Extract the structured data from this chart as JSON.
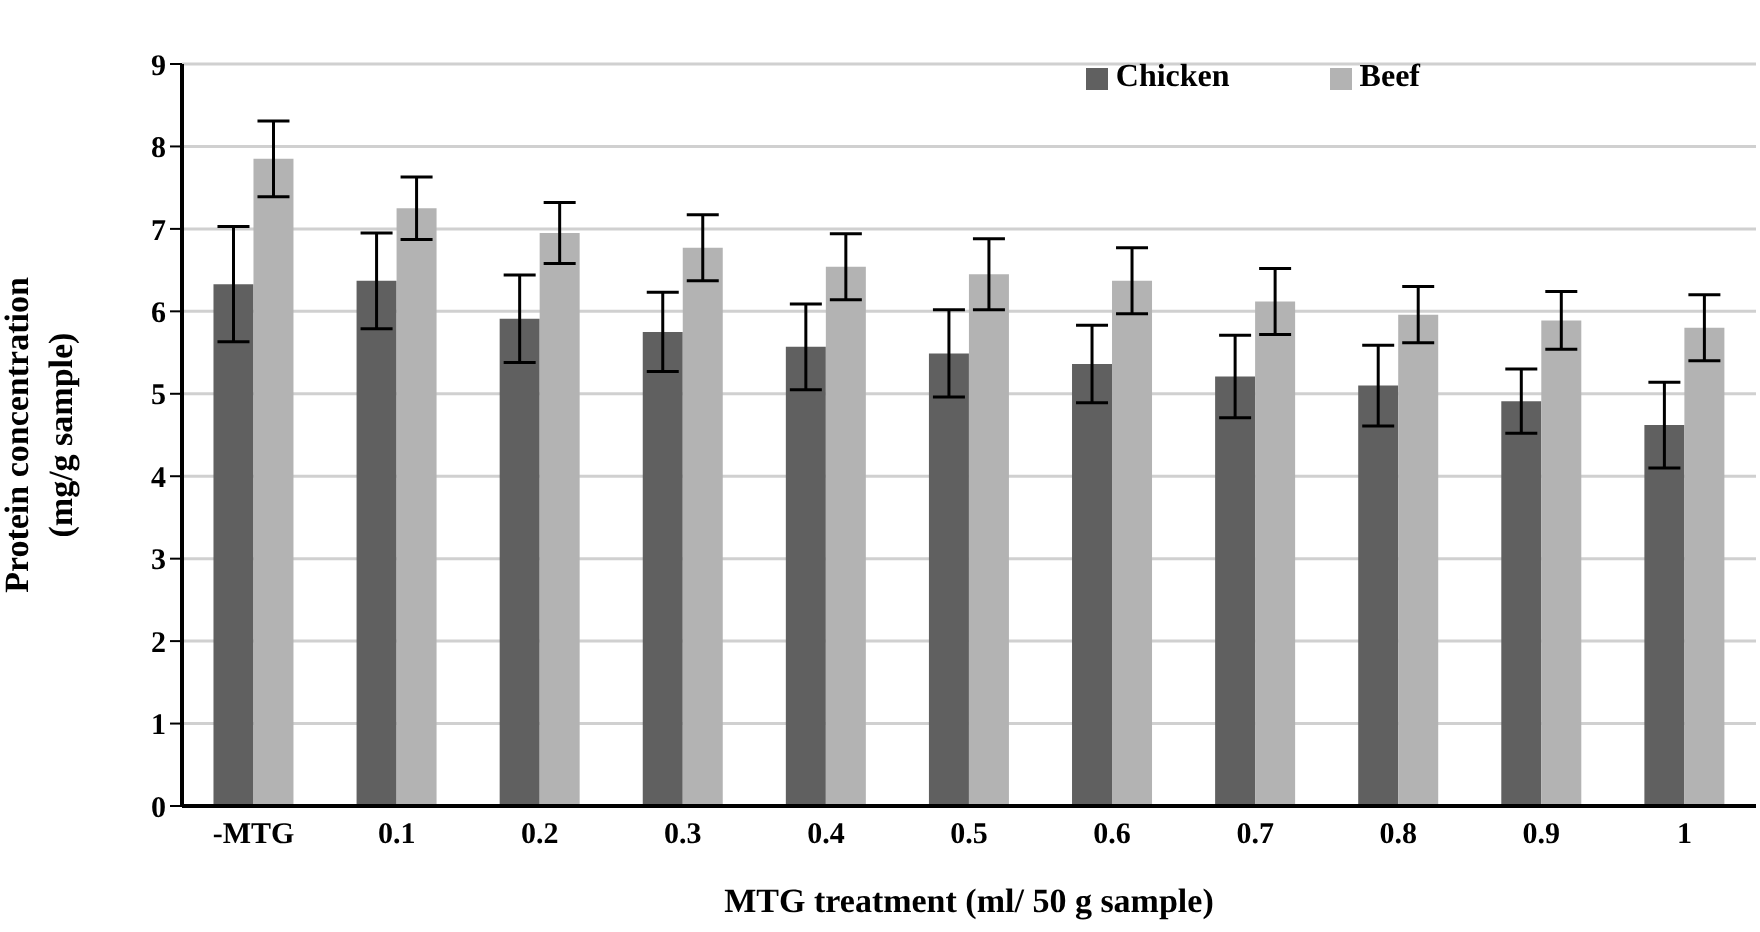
{
  "chart_data": {
    "type": "bar",
    "xlabel": "MTG treatment (ml/ 50 g sample)",
    "ylabel": "Protein concentration (mg/g sample)",
    "categories": [
      "-MTG",
      "0.1",
      "0.2",
      "0.3",
      "0.4",
      "0.5",
      "0.6",
      "0.7",
      "0.8",
      "0.9",
      "1"
    ],
    "series": [
      {
        "name": "Chicken",
        "color": "#606060",
        "values": [
          6.33,
          6.37,
          5.91,
          5.75,
          5.57,
          5.49,
          5.36,
          5.21,
          5.1,
          4.91,
          4.62
        ],
        "errors": [
          0.7,
          0.58,
          0.53,
          0.48,
          0.52,
          0.53,
          0.47,
          0.5,
          0.49,
          0.39,
          0.52
        ]
      },
      {
        "name": "Beef",
        "color": "#b3b3b3",
        "values": [
          7.85,
          7.25,
          6.95,
          6.77,
          6.54,
          6.45,
          6.37,
          6.12,
          5.96,
          5.89,
          5.8
        ],
        "errors": [
          0.46,
          0.38,
          0.37,
          0.4,
          0.4,
          0.43,
          0.4,
          0.4,
          0.34,
          0.35,
          0.4
        ]
      }
    ],
    "ylim": [
      0,
      9
    ],
    "yticks": [
      0,
      1,
      2,
      3,
      4,
      5,
      6,
      7,
      8,
      9
    ],
    "grid": "y",
    "legend": "top right"
  }
}
